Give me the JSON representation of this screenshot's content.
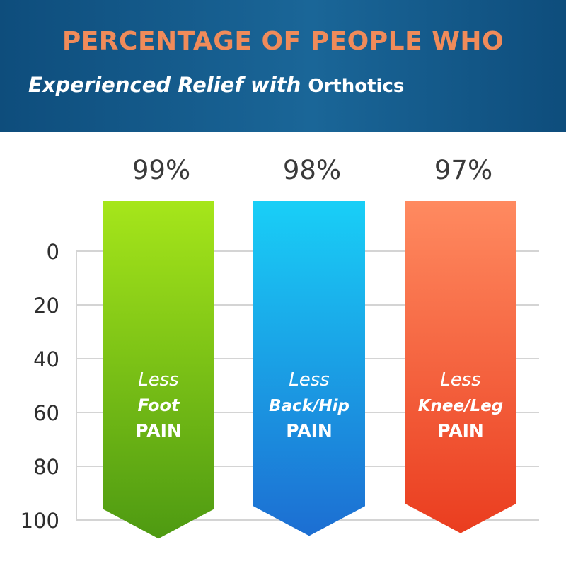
{
  "header": {
    "title": "PERCENTAGE OF PEOPLE WHO",
    "subtitle_main": "Experienced Relief with ",
    "subtitle_end": "Orthotics"
  },
  "chart_data": {
    "type": "bar",
    "title": "PERCENTAGE OF PEOPLE WHO Experienced Relief with Orthotics",
    "categories": [
      "Less Foot PAIN",
      "Less Back/Hip PAIN",
      "Less Knee/Leg PAIN"
    ],
    "bar_lines": [
      [
        "Less",
        "Foot",
        "PAIN"
      ],
      [
        "Less",
        "Back/Hip",
        "PAIN"
      ],
      [
        "Less",
        "Knee/Leg",
        "PAIN"
      ]
    ],
    "values": [
      99,
      98,
      97
    ],
    "value_labels": [
      "99%",
      "98%",
      "97%"
    ],
    "colors": [
      [
        "#a6e61a",
        "#4e9a12"
      ],
      [
        "#19cff7",
        "#1c6ed2"
      ],
      [
        "#ff8a60",
        "#ea3d1f"
      ]
    ],
    "y_ticks": [
      "0",
      "20",
      "40",
      "60",
      "80",
      "100"
    ],
    "y_axis_direction": "0 at top, 100 at bottom",
    "ylim": [
      0,
      100
    ],
    "grid": true,
    "legend": "none"
  }
}
